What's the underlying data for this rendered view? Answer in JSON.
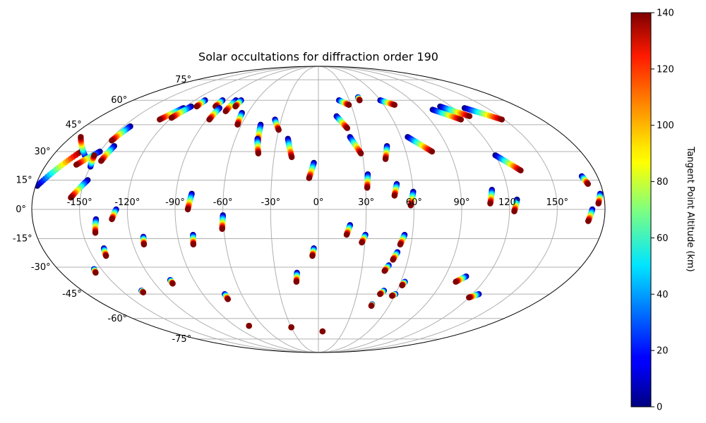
{
  "chart_data": {
    "type": "scatter",
    "title": "Solar occultations for diffraction order 190",
    "projection": "mollweide",
    "grid": true,
    "lon_tick_labels": [
      "-150°",
      "-120°",
      "-90°",
      "-60°",
      "-30°",
      "0°",
      "30°",
      "60°",
      "90°",
      "120°",
      "150°"
    ],
    "lon_ticks": [
      -150,
      -120,
      -90,
      -60,
      -30,
      0,
      30,
      60,
      90,
      120,
      150
    ],
    "lat_tick_labels": [
      "-75°",
      "-60°",
      "-45°",
      "-30°",
      "-15°",
      "0°",
      "15°",
      "30°",
      "45°",
      "60°",
      "75°"
    ],
    "lat_ticks": [
      -75,
      -60,
      -45,
      -30,
      -15,
      0,
      15,
      30,
      45,
      60,
      75
    ],
    "colorbar": {
      "label": "Tangent Point Altitude (km)",
      "range": [
        0,
        140
      ],
      "ticks": [
        0,
        20,
        40,
        60,
        80,
        100,
        120,
        140
      ],
      "colormap": "jet"
    },
    "tracks_note_lon_lat": "each track: start (low altitude, dark blue) to end (high altitude, dark red), in degrees lon/lat",
    "tracks": [
      {
        "start": [
          -179,
          12
        ],
        "end": [
          -163,
          30
        ]
      },
      {
        "start": [
          -157,
          27
        ],
        "end": [
          -173,
          38
        ]
      },
      {
        "start": [
          -150,
          30
        ],
        "end": [
          -160,
          23
        ]
      },
      {
        "start": [
          -150,
          22
        ],
        "end": [
          -152,
          28
        ]
      },
      {
        "start": [
          -148,
          15
        ],
        "end": [
          -156,
          6
        ]
      },
      {
        "start": [
          -145,
          44
        ],
        "end": [
          -148,
          36
        ]
      },
      {
        "start": [
          -143,
          33
        ],
        "end": [
          -145,
          25
        ]
      },
      {
        "start": [
          -140,
          -5
        ],
        "end": [
          -142,
          -12
        ]
      },
      {
        "start": [
          -120,
          55
        ],
        "end": [
          -128,
          48
        ]
      },
      {
        "start": [
          -115,
          56
        ],
        "end": [
          -120,
          49
        ]
      },
      {
        "start": [
          -110,
          60
        ],
        "end": [
          -110,
          56
        ]
      },
      {
        "start": [
          -127,
          0
        ],
        "end": [
          -130,
          -5
        ]
      },
      {
        "start": [
          -112,
          -14
        ],
        "end": [
          -113,
          -18
        ]
      },
      {
        "start": [
          -140,
          -20
        ],
        "end": [
          -141,
          -24
        ]
      },
      {
        "start": [
          -155,
          -31
        ],
        "end": [
          -156,
          -33
        ]
      },
      {
        "start": [
          -135,
          -43
        ],
        "end": [
          -135,
          -44
        ]
      },
      {
        "start": [
          -107,
          -37
        ],
        "end": [
          -107,
          -39
        ]
      },
      {
        "start": [
          -93,
          60
        ],
        "end": [
          -93,
          56
        ]
      },
      {
        "start": [
          -88,
          55
        ],
        "end": [
          -88,
          48
        ]
      },
      {
        "start": [
          -80,
          60
        ],
        "end": [
          -80,
          53
        ]
      },
      {
        "start": [
          -75,
          60
        ],
        "end": [
          -75,
          56
        ]
      },
      {
        "start": [
          -65,
          52
        ],
        "end": [
          -63,
          45
        ]
      },
      {
        "start": [
          -80,
          8
        ],
        "end": [
          -82,
          0
        ]
      },
      {
        "start": [
          -80,
          -13
        ],
        "end": [
          -81,
          -18
        ]
      },
      {
        "start": [
          -60,
          -3
        ],
        "end": [
          -61,
          -10
        ]
      },
      {
        "start": [
          -73,
          -45
        ],
        "end": [
          -73,
          -48
        ]
      },
      {
        "start": [
          -75,
          -65
        ],
        "end": [
          -75,
          -65
        ]
      },
      {
        "start": [
          -45,
          45
        ],
        "end": [
          -43,
          35
        ]
      },
      {
        "start": [
          -44,
          37
        ],
        "end": [
          -41,
          29
        ]
      },
      {
        "start": [
          -35,
          48
        ],
        "end": [
          -30,
          42
        ]
      },
      {
        "start": [
          -22,
          37
        ],
        "end": [
          -18,
          27
        ]
      },
      {
        "start": [
          -3,
          24
        ],
        "end": [
          -6,
          16
        ]
      },
      {
        "start": [
          -15,
          -33
        ],
        "end": [
          -16,
          -38
        ]
      },
      {
        "start": [
          -3,
          -20
        ],
        "end": [
          -4,
          -24
        ]
      },
      {
        "start": [
          -30,
          -66
        ],
        "end": [
          -30,
          -66
        ]
      },
      {
        "start": [
          5,
          -69
        ],
        "end": [
          5,
          -69
        ]
      },
      {
        "start": [
          15,
          50
        ],
        "end": [
          22,
          43
        ]
      },
      {
        "start": [
          23,
          38
        ],
        "end": [
          29,
          29
        ]
      },
      {
        "start": [
          32,
          18
        ],
        "end": [
          31,
          11
        ]
      },
      {
        "start": [
          20,
          -8
        ],
        "end": [
          18,
          -13
        ]
      },
      {
        "start": [
          30,
          -13
        ],
        "end": [
          28,
          -17
        ]
      },
      {
        "start": [
          48,
          33
        ],
        "end": [
          45,
          26
        ]
      },
      {
        "start": [
          50,
          13
        ],
        "end": [
          48,
          7
        ]
      },
      {
        "start": [
          60,
          9
        ],
        "end": [
          58,
          2
        ]
      },
      {
        "start": [
          55,
          -13
        ],
        "end": [
          53,
          -18
        ]
      },
      {
        "start": [
          52,
          -22
        ],
        "end": [
          50,
          -26
        ]
      },
      {
        "start": [
          48,
          -29
        ],
        "end": [
          46,
          -32
        ]
      },
      {
        "start": [
          50,
          -43
        ],
        "end": [
          48,
          -45
        ]
      },
      {
        "start": [
          45,
          -51
        ],
        "end": [
          45,
          -52
        ]
      },
      {
        "start": [
          65,
          38
        ],
        "end": [
          78,
          30
        ]
      },
      {
        "start": [
          63,
          -38
        ],
        "end": [
          62,
          -40
        ]
      },
      {
        "start": [
          60,
          -45
        ],
        "end": [
          58,
          -46
        ]
      },
      {
        "start": [
          20,
          60
        ],
        "end": [
          28,
          57
        ]
      },
      {
        "start": [
          40,
          62
        ],
        "end": [
          40,
          60
        ]
      },
      {
        "start": [
          60,
          60
        ],
        "end": [
          70,
          57
        ]
      },
      {
        "start": [
          100,
          54
        ],
        "end": [
          115,
          48
        ]
      },
      {
        "start": [
          110,
          56
        ],
        "end": [
          125,
          50
        ]
      },
      {
        "start": [
          130,
          55
        ],
        "end": [
          148,
          48
        ]
      },
      {
        "start": [
          110,
          10
        ],
        "end": [
          108,
          3
        ]
      },
      {
        "start": [
          125,
          5
        ],
        "end": [
          123,
          -1
        ]
      },
      {
        "start": [
          120,
          28
        ],
        "end": [
          132,
          20
        ]
      },
      {
        "start": [
          105,
          -35
        ],
        "end": [
          100,
          -38
        ]
      },
      {
        "start": [
          125,
          -45
        ],
        "end": [
          120,
          -47
        ]
      },
      {
        "start": [
          178,
          8
        ],
        "end": [
          176,
          3
        ]
      },
      {
        "start": [
          172,
          0
        ],
        "end": [
          170,
          -6
        ]
      },
      {
        "start": [
          170,
          17
        ],
        "end": [
          172,
          13
        ]
      }
    ]
  }
}
